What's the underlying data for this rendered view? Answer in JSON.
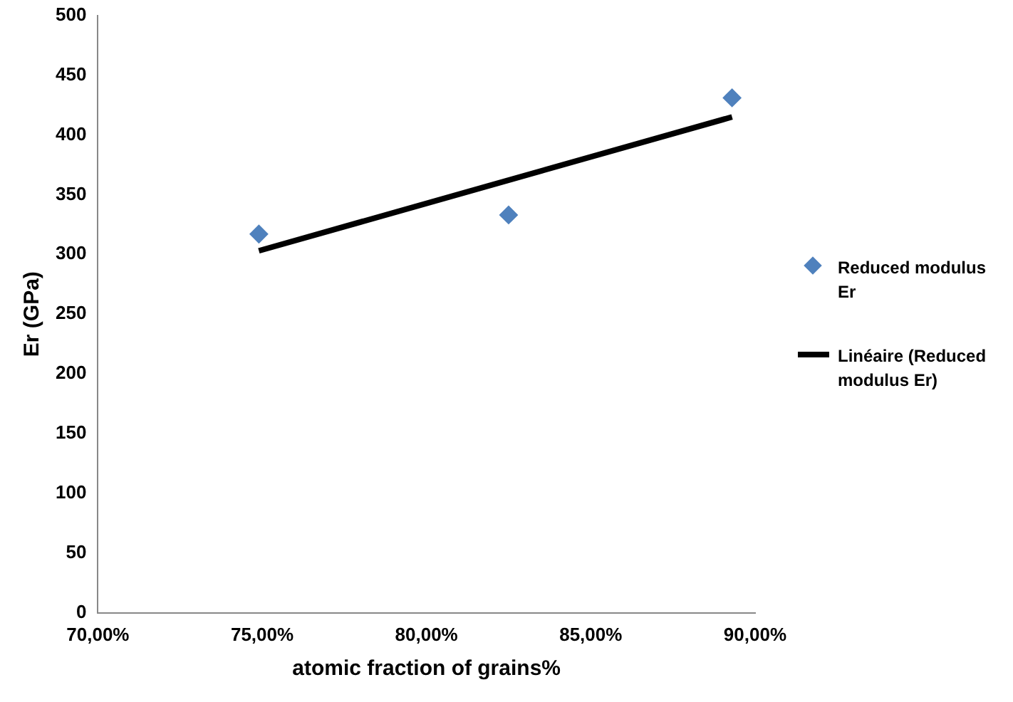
{
  "chart_data": {
    "type": "scatter",
    "xlabel": "atomic fraction of grains%",
    "ylabel": "Er (GPa)",
    "xlim": [
      70,
      90
    ],
    "xticks": [
      {
        "value": 70,
        "label": "70,00%"
      },
      {
        "value": 75,
        "label": "75,00%"
      },
      {
        "value": 80,
        "label": "80,00%"
      },
      {
        "value": 85,
        "label": "85,00%"
      },
      {
        "value": 90,
        "label": "90,00%"
      }
    ],
    "ylim": [
      0,
      500
    ],
    "yticks": [
      0,
      50,
      100,
      150,
      200,
      250,
      300,
      350,
      400,
      450,
      500
    ],
    "grid": false,
    "legend": "right",
    "series": [
      {
        "name": "Reduced modulus Er",
        "type": "scatter",
        "marker": "diamond",
        "color": "#4f81bd",
        "x": [
          74.9,
          82.5,
          89.3
        ],
        "values": [
          317,
          333,
          431
        ]
      },
      {
        "name": "Linéaire (Reduced modulus Er)",
        "type": "line",
        "marker": "none",
        "line_style": "solid",
        "color": "#000000",
        "x": [
          74.9,
          89.3
        ],
        "values": [
          303,
          415
        ]
      }
    ]
  }
}
